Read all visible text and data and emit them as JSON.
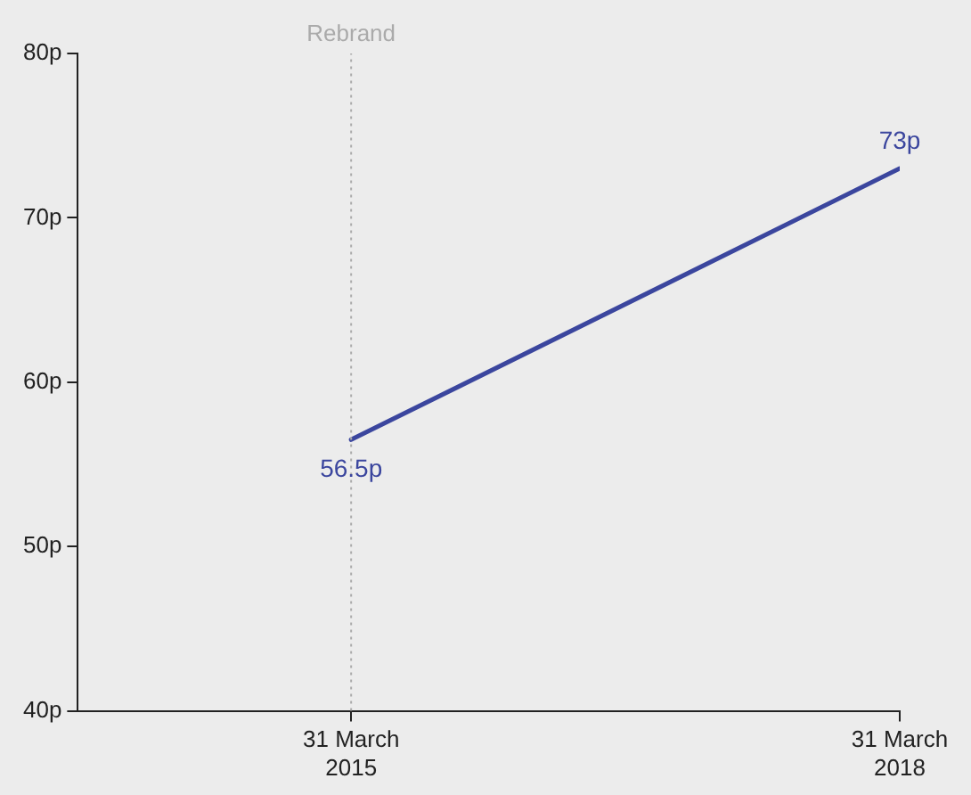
{
  "chart_data": {
    "type": "line",
    "x": [
      "2015-03-31",
      "2018-03-31"
    ],
    "series": [
      {
        "color": "#3b469e",
        "values": [
          56.5,
          73
        ],
        "value_labels": [
          "56.5p",
          "73p"
        ]
      }
    ],
    "xlim": [
      "2013-10-01",
      "2018-03-31"
    ],
    "xticks": [
      {
        "value": "2015-03-31",
        "label": "31 March\n2015"
      },
      {
        "value": "2018-03-31",
        "label": "31 March\n2018"
      }
    ],
    "ylim": [
      40,
      80
    ],
    "yticks": [
      {
        "value": 40,
        "label": "40p"
      },
      {
        "value": 50,
        "label": "50p"
      },
      {
        "value": 60,
        "label": "60p"
      },
      {
        "value": 70,
        "label": "70p"
      },
      {
        "value": 80,
        "label": "80p"
      }
    ],
    "ref_lines": [
      {
        "axis": "x",
        "value": "2015-03-31",
        "label": "Rebrand",
        "color": "#aaaaaa",
        "line_style": "dotted"
      }
    ],
    "grid": false,
    "legend": false,
    "marker": "none",
    "line_style": "solid"
  }
}
